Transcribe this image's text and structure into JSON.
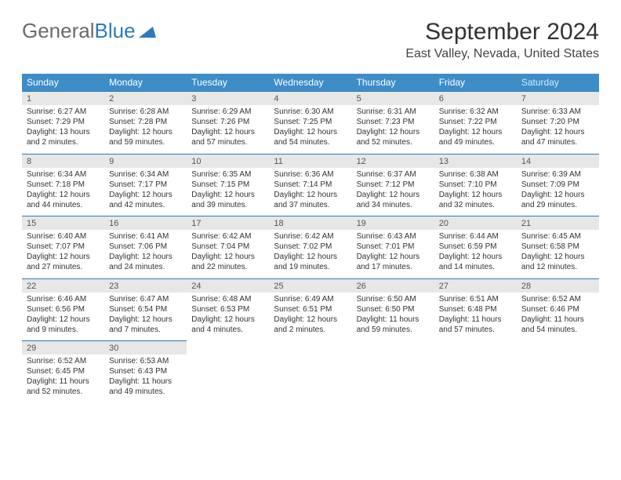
{
  "logo": {
    "text1": "General",
    "text2": "Blue"
  },
  "title": "September 2024",
  "location": "East Valley, Nevada, United States",
  "day_headers": [
    "Sunday",
    "Monday",
    "Tuesday",
    "Wednesday",
    "Thursday",
    "Friday",
    "Saturday"
  ],
  "colors": {
    "header_bg": "#3d8dc9",
    "header_text": "#ffffff",
    "daynum_bg": "#e7e7e7",
    "border": "#2c7bb8",
    "logo_gray": "#6b6b6b",
    "logo_blue": "#2c7bb8"
  },
  "weeks": [
    [
      {
        "n": "1",
        "sr": "6:27 AM",
        "ss": "7:29 PM",
        "dl": "13 hours and 2 minutes."
      },
      {
        "n": "2",
        "sr": "6:28 AM",
        "ss": "7:28 PM",
        "dl": "12 hours and 59 minutes."
      },
      {
        "n": "3",
        "sr": "6:29 AM",
        "ss": "7:26 PM",
        "dl": "12 hours and 57 minutes."
      },
      {
        "n": "4",
        "sr": "6:30 AM",
        "ss": "7:25 PM",
        "dl": "12 hours and 54 minutes."
      },
      {
        "n": "5",
        "sr": "6:31 AM",
        "ss": "7:23 PM",
        "dl": "12 hours and 52 minutes."
      },
      {
        "n": "6",
        "sr": "6:32 AM",
        "ss": "7:22 PM",
        "dl": "12 hours and 49 minutes."
      },
      {
        "n": "7",
        "sr": "6:33 AM",
        "ss": "7:20 PM",
        "dl": "12 hours and 47 minutes."
      }
    ],
    [
      {
        "n": "8",
        "sr": "6:34 AM",
        "ss": "7:18 PM",
        "dl": "12 hours and 44 minutes."
      },
      {
        "n": "9",
        "sr": "6:34 AM",
        "ss": "7:17 PM",
        "dl": "12 hours and 42 minutes."
      },
      {
        "n": "10",
        "sr": "6:35 AM",
        "ss": "7:15 PM",
        "dl": "12 hours and 39 minutes."
      },
      {
        "n": "11",
        "sr": "6:36 AM",
        "ss": "7:14 PM",
        "dl": "12 hours and 37 minutes."
      },
      {
        "n": "12",
        "sr": "6:37 AM",
        "ss": "7:12 PM",
        "dl": "12 hours and 34 minutes."
      },
      {
        "n": "13",
        "sr": "6:38 AM",
        "ss": "7:10 PM",
        "dl": "12 hours and 32 minutes."
      },
      {
        "n": "14",
        "sr": "6:39 AM",
        "ss": "7:09 PM",
        "dl": "12 hours and 29 minutes."
      }
    ],
    [
      {
        "n": "15",
        "sr": "6:40 AM",
        "ss": "7:07 PM",
        "dl": "12 hours and 27 minutes."
      },
      {
        "n": "16",
        "sr": "6:41 AM",
        "ss": "7:06 PM",
        "dl": "12 hours and 24 minutes."
      },
      {
        "n": "17",
        "sr": "6:42 AM",
        "ss": "7:04 PM",
        "dl": "12 hours and 22 minutes."
      },
      {
        "n": "18",
        "sr": "6:42 AM",
        "ss": "7:02 PM",
        "dl": "12 hours and 19 minutes."
      },
      {
        "n": "19",
        "sr": "6:43 AM",
        "ss": "7:01 PM",
        "dl": "12 hours and 17 minutes."
      },
      {
        "n": "20",
        "sr": "6:44 AM",
        "ss": "6:59 PM",
        "dl": "12 hours and 14 minutes."
      },
      {
        "n": "21",
        "sr": "6:45 AM",
        "ss": "6:58 PM",
        "dl": "12 hours and 12 minutes."
      }
    ],
    [
      {
        "n": "22",
        "sr": "6:46 AM",
        "ss": "6:56 PM",
        "dl": "12 hours and 9 minutes."
      },
      {
        "n": "23",
        "sr": "6:47 AM",
        "ss": "6:54 PM",
        "dl": "12 hours and 7 minutes."
      },
      {
        "n": "24",
        "sr": "6:48 AM",
        "ss": "6:53 PM",
        "dl": "12 hours and 4 minutes."
      },
      {
        "n": "25",
        "sr": "6:49 AM",
        "ss": "6:51 PM",
        "dl": "12 hours and 2 minutes."
      },
      {
        "n": "26",
        "sr": "6:50 AM",
        "ss": "6:50 PM",
        "dl": "11 hours and 59 minutes."
      },
      {
        "n": "27",
        "sr": "6:51 AM",
        "ss": "6:48 PM",
        "dl": "11 hours and 57 minutes."
      },
      {
        "n": "28",
        "sr": "6:52 AM",
        "ss": "6:46 PM",
        "dl": "11 hours and 54 minutes."
      }
    ],
    [
      {
        "n": "29",
        "sr": "6:52 AM",
        "ss": "6:45 PM",
        "dl": "11 hours and 52 minutes."
      },
      {
        "n": "30",
        "sr": "6:53 AM",
        "ss": "6:43 PM",
        "dl": "11 hours and 49 minutes."
      },
      null,
      null,
      null,
      null,
      null
    ]
  ],
  "labels": {
    "sunrise": "Sunrise: ",
    "sunset": "Sunset: ",
    "daylight": "Daylight: "
  }
}
